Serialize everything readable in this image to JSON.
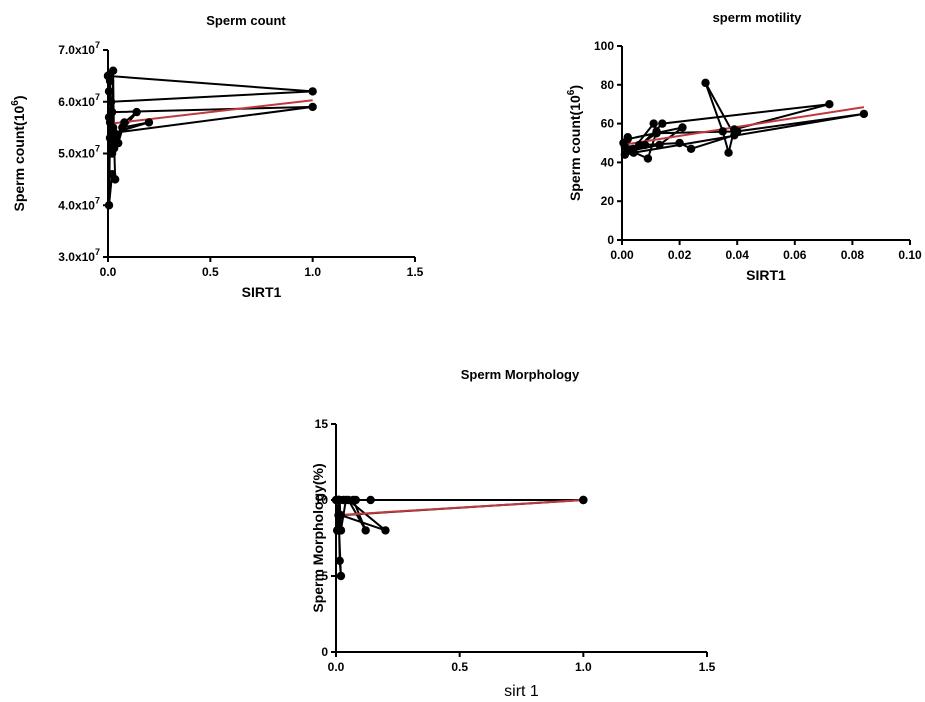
{
  "chart_data": [
    {
      "type": "line",
      "title": "Sperm count",
      "xlabel": "SIRT1",
      "ylabel": "Sperm count(10",
      "ylabel_sup": "6",
      "ylabel_close": ")",
      "xlim": [
        0,
        1.5
      ],
      "ylim": [
        30000000,
        70000000
      ],
      "x_ticks": [
        0,
        0.5,
        1,
        1.5
      ],
      "x_tick_labels": [
        "0.0",
        "0.5",
        "1.0",
        "1.5"
      ],
      "y_ticks": [
        30000000,
        40000000,
        50000000,
        60000000,
        70000000
      ],
      "y_tick_labels": [
        {
          "base": "3.0x10",
          "exp": "7"
        },
        {
          "base": "4.0x10",
          "exp": "7"
        },
        {
          "base": "5.0x10",
          "exp": "7"
        },
        {
          "base": "6.0x10",
          "exp": "7"
        },
        {
          "base": "7.0x10",
          "exp": "7"
        }
      ],
      "series": [
        {
          "x": [
            0.0,
            0.005,
            0.01,
            0.015,
            0.02,
            0.025,
            0.03,
            0.01,
            0.005,
            0.02,
            0.035,
            0.03,
            0.025,
            0.01,
            0.015,
            1.0,
            0.0,
            0.005,
            0.01,
            0.02,
            0.03,
            0.05,
            0.08,
            0.14,
            0.04,
            0.07,
            0.2,
            0.03,
            1.0,
            0.02
          ],
          "y": [
            65000000,
            62000000,
            64000000,
            58000000,
            55000000,
            66000000,
            51000000,
            53000000,
            40000000,
            46000000,
            45000000,
            52000000,
            55000000,
            56000000,
            60000000,
            62000000,
            65000000,
            57000000,
            53000000,
            50000000,
            54000000,
            52000000,
            56000000,
            58000000,
            53000000,
            55000000,
            56000000,
            54000000,
            59000000,
            58000000
          ]
        }
      ],
      "fit_line": {
        "x": [
          0,
          1.0
        ],
        "y": [
          55700000,
          60300000
        ]
      },
      "colors": {
        "points": "#000000",
        "fit": "#c0393b"
      },
      "grid": false
    },
    {
      "type": "line",
      "title": "sperm motility",
      "xlabel": "SIRT1",
      "ylabel": "Sperm count(10",
      "ylabel_sup": "6",
      "ylabel_close": ")",
      "xlim": [
        0,
        0.1
      ],
      "ylim": [
        0,
        100
      ],
      "x_ticks": [
        0,
        0.02,
        0.04,
        0.06,
        0.08,
        0.1
      ],
      "x_tick_labels": [
        "0.00",
        "0.02",
        "0.04",
        "0.06",
        "0.08",
        "0.10"
      ],
      "y_ticks": [
        0,
        20,
        40,
        60,
        80,
        100
      ],
      "y_tick_labels": [
        "0",
        "20",
        "40",
        "60",
        "80",
        "100"
      ],
      "series": [
        {
          "x": [
            0.0005,
            0.002,
            0.001,
            0.004,
            0.011,
            0.012,
            0.009,
            0.003,
            0.013,
            0.021,
            0.002,
            0.001,
            0.008,
            0.02,
            0.024,
            0.039,
            0.029,
            0.035,
            0.037,
            0.039,
            0.072,
            0.014,
            0.004,
            0.084,
            0.04,
            0.012,
            0.006
          ],
          "y": [
            50,
            53,
            44,
            47,
            60,
            56,
            42,
            46,
            49,
            58,
            52,
            48,
            49,
            50,
            47,
            54,
            81,
            56,
            45,
            57,
            70,
            60,
            45,
            65,
            56,
            55,
            49
          ]
        }
      ],
      "fit_line": {
        "x": [
          0,
          0.084
        ],
        "y": [
          49,
          68.5
        ]
      },
      "colors": {
        "points": "#000000",
        "fit": "#c0393b"
      },
      "grid": false
    },
    {
      "type": "line",
      "title": "Sperm Morphology",
      "xlabel": "sirt 1",
      "ylabel": "Sperm Morphology(%)",
      "xlim": [
        0,
        1.5
      ],
      "ylim": [
        0,
        15
      ],
      "x_ticks": [
        0,
        0.5,
        1,
        1.5
      ],
      "x_tick_labels": [
        "0.0",
        "0.5",
        "1.0",
        "1.5"
      ],
      "y_ticks": [
        0,
        5,
        10,
        15
      ],
      "y_tick_labels": [
        "0",
        "5",
        "10",
        "15"
      ],
      "series": [
        {
          "x": [
            0.0,
            0.005,
            0.01,
            0.015,
            0.02,
            0.01,
            0.005,
            0.015,
            0.02,
            0.04,
            0.08,
            0.14,
            1.0,
            0.01,
            0.03,
            0.07,
            0.12,
            0.05,
            0.2,
            0.02,
            1.0,
            0.01,
            0.02
          ],
          "y": [
            10,
            8,
            10,
            6,
            5,
            9,
            8,
            10,
            8,
            10,
            10,
            10,
            10,
            10,
            10,
            10,
            8,
            10,
            8,
            9,
            10,
            10,
            8
          ]
        }
      ],
      "fit_line": {
        "x": [
          0,
          1.0
        ],
        "y": [
          9.0,
          10.0
        ]
      },
      "colors": {
        "points": "#000000",
        "fit": "#c0393b"
      },
      "grid": false
    }
  ]
}
